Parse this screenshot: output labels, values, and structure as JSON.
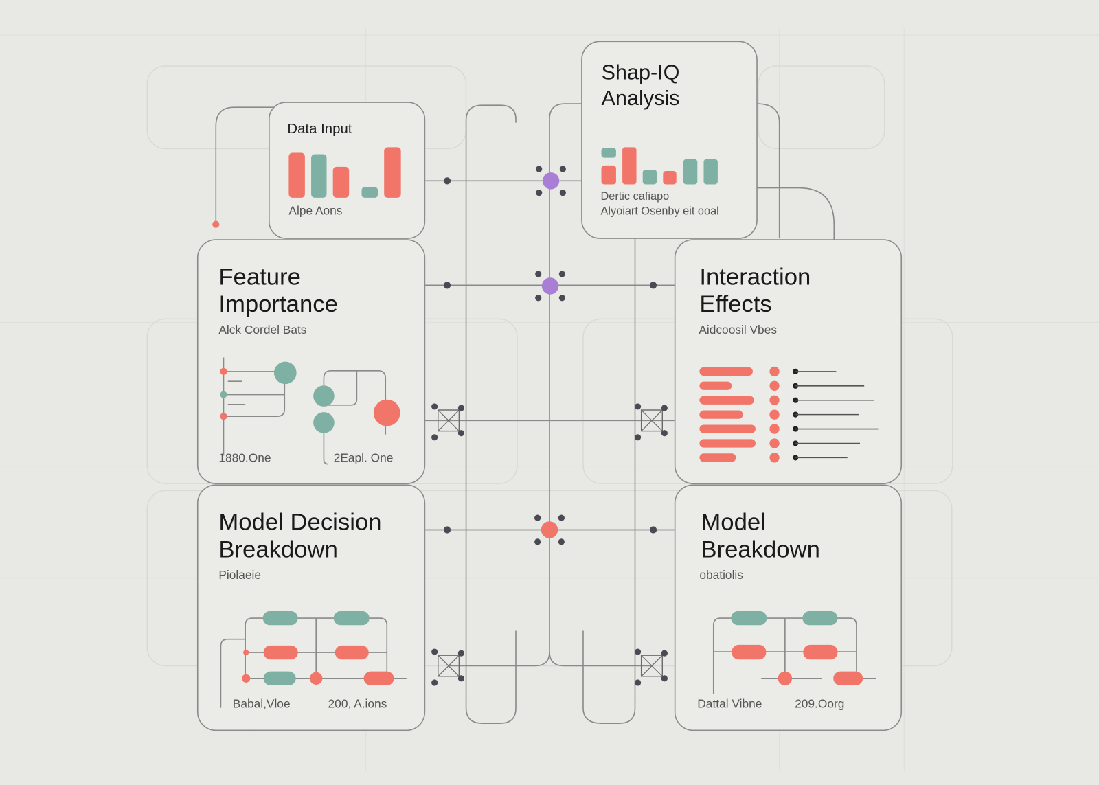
{
  "colors": {
    "background": "#e8e8e4",
    "card": "#ebebe7",
    "coral": "#f2756a",
    "teal": "#7fb0a4",
    "purple": "#a97fd6",
    "node": "#4a4a55",
    "wire": "#8a8a8a"
  },
  "cards": {
    "data_input": {
      "title": "Data Input",
      "caption": "Alpe Aons"
    },
    "shap_iq": {
      "title_line1": "Shap-IQ",
      "title_line2": "Analysis",
      "caption_line1": "Dertic cafiapo",
      "caption_line2": "Alyoiart Osenby eit ooal"
    },
    "feature_importance": {
      "title_line1": "Feature",
      "title_line2": "Importance",
      "subtitle": "Alck Cordel Bats",
      "label_left": "1880.One",
      "label_right": "2Eapl. One"
    },
    "interaction_effects": {
      "title_line1": "Interaction",
      "title_line2": "Effects",
      "subtitle": "Aidcoosil Vbes"
    },
    "model_decision_breakdown": {
      "title_line1": "Model Decision",
      "title_line2": "Breakdown",
      "subtitle": "Piolaeie",
      "label_left": "Babal,Vloe",
      "label_right": "200, A.ions"
    },
    "model_breakdown": {
      "title_line1": "Model",
      "title_line2": "Breakdown",
      "subtitle": "obatiolis",
      "label_left": "Dattal Vibne",
      "label_right": "209.Oorg"
    }
  },
  "hubs": [
    {
      "name": "hub-top",
      "color": "purple"
    },
    {
      "name": "hub-middle",
      "color": "purple"
    },
    {
      "name": "hub-bottom",
      "color": "coral"
    }
  ]
}
